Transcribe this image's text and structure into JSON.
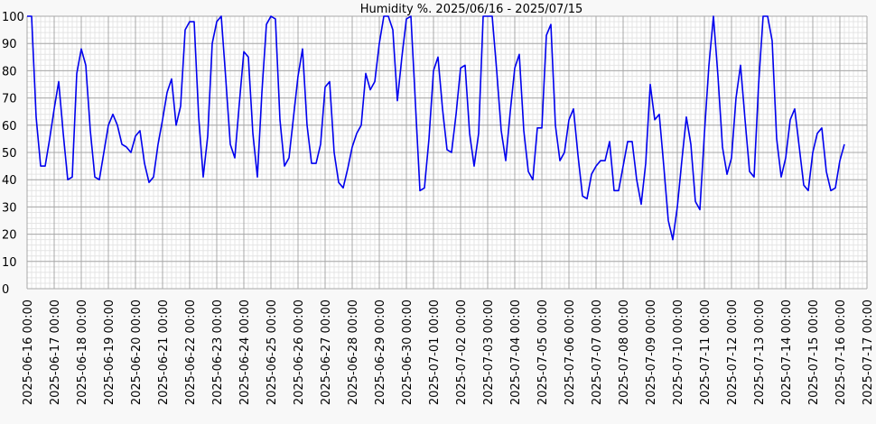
{
  "chart_data": {
    "type": "line",
    "title": "Humidity %. 2025/06/16 - 2025/07/15",
    "x": [
      "2025-06-16 00:00",
      "2025-06-16 04:00",
      "2025-06-16 08:00",
      "2025-06-16 12:00",
      "2025-06-16 16:00",
      "2025-06-16 20:00",
      "2025-06-17 00:00",
      "2025-06-17 04:00",
      "2025-06-17 08:00",
      "2025-06-17 12:00",
      "2025-06-17 16:00",
      "2025-06-17 20:00",
      "2025-06-18 00:00",
      "2025-06-18 04:00",
      "2025-06-18 08:00",
      "2025-06-18 12:00",
      "2025-06-18 16:00",
      "2025-06-18 20:00",
      "2025-06-19 00:00",
      "2025-06-19 04:00",
      "2025-06-19 08:00",
      "2025-06-19 12:00",
      "2025-06-19 16:00",
      "2025-06-19 20:00",
      "2025-06-20 00:00",
      "2025-06-20 04:00",
      "2025-06-20 08:00",
      "2025-06-20 12:00",
      "2025-06-20 16:00",
      "2025-06-20 20:00",
      "2025-06-21 00:00",
      "2025-06-21 04:00",
      "2025-06-21 08:00",
      "2025-06-21 12:00",
      "2025-06-21 16:00",
      "2025-06-21 20:00",
      "2025-06-22 00:00",
      "2025-06-22 04:00",
      "2025-06-22 08:00",
      "2025-06-22 12:00",
      "2025-06-22 16:00",
      "2025-06-22 20:00",
      "2025-06-23 00:00",
      "2025-06-23 04:00",
      "2025-06-23 08:00",
      "2025-06-23 12:00",
      "2025-06-23 16:00",
      "2025-06-23 20:00",
      "2025-06-24 00:00",
      "2025-06-24 04:00",
      "2025-06-24 08:00",
      "2025-06-24 12:00",
      "2025-06-24 16:00",
      "2025-06-24 20:00",
      "2025-06-25 00:00",
      "2025-06-25 04:00",
      "2025-06-25 08:00",
      "2025-06-25 12:00",
      "2025-06-25 16:00",
      "2025-06-25 20:00",
      "2025-06-26 00:00",
      "2025-06-26 04:00",
      "2025-06-26 08:00",
      "2025-06-26 12:00",
      "2025-06-26 16:00",
      "2025-06-26 20:00",
      "2025-06-27 00:00",
      "2025-06-27 04:00",
      "2025-06-27 08:00",
      "2025-06-27 12:00",
      "2025-06-27 16:00",
      "2025-06-27 20:00",
      "2025-06-28 00:00",
      "2025-06-28 04:00",
      "2025-06-28 08:00",
      "2025-06-28 12:00",
      "2025-06-28 16:00",
      "2025-06-28 20:00",
      "2025-06-29 00:00",
      "2025-06-29 04:00",
      "2025-06-29 08:00",
      "2025-06-29 12:00",
      "2025-06-29 16:00",
      "2025-06-29 20:00",
      "2025-06-30 00:00",
      "2025-06-30 04:00",
      "2025-06-30 08:00",
      "2025-06-30 12:00",
      "2025-06-30 16:00",
      "2025-06-30 20:00",
      "2025-07-01 00:00",
      "2025-07-01 04:00",
      "2025-07-01 08:00",
      "2025-07-01 12:00",
      "2025-07-01 16:00",
      "2025-07-01 20:00",
      "2025-07-02 00:00",
      "2025-07-02 04:00",
      "2025-07-02 08:00",
      "2025-07-02 12:00",
      "2025-07-02 16:00",
      "2025-07-02 20:00",
      "2025-07-03 00:00",
      "2025-07-03 04:00",
      "2025-07-03 08:00",
      "2025-07-03 12:00",
      "2025-07-03 16:00",
      "2025-07-03 20:00",
      "2025-07-04 00:00",
      "2025-07-04 04:00",
      "2025-07-04 08:00",
      "2025-07-04 12:00",
      "2025-07-04 16:00",
      "2025-07-04 20:00",
      "2025-07-05 00:00",
      "2025-07-05 04:00",
      "2025-07-05 08:00",
      "2025-07-05 12:00",
      "2025-07-05 16:00",
      "2025-07-05 20:00",
      "2025-07-06 00:00",
      "2025-07-06 04:00",
      "2025-07-06 08:00",
      "2025-07-06 12:00",
      "2025-07-06 16:00",
      "2025-07-06 20:00",
      "2025-07-07 00:00",
      "2025-07-07 04:00",
      "2025-07-07 08:00",
      "2025-07-07 12:00",
      "2025-07-07 16:00",
      "2025-07-07 20:00",
      "2025-07-08 00:00",
      "2025-07-08 04:00",
      "2025-07-08 08:00",
      "2025-07-08 12:00",
      "2025-07-08 16:00",
      "2025-07-08 20:00",
      "2025-07-09 00:00",
      "2025-07-09 04:00",
      "2025-07-09 08:00",
      "2025-07-09 12:00",
      "2025-07-09 16:00",
      "2025-07-09 20:00",
      "2025-07-10 00:00",
      "2025-07-10 04:00",
      "2025-07-10 08:00",
      "2025-07-10 12:00",
      "2025-07-10 16:00",
      "2025-07-10 20:00",
      "2025-07-11 00:00",
      "2025-07-11 04:00",
      "2025-07-11 08:00",
      "2025-07-11 12:00",
      "2025-07-11 16:00",
      "2025-07-11 20:00",
      "2025-07-12 00:00",
      "2025-07-12 04:00",
      "2025-07-12 08:00",
      "2025-07-12 12:00",
      "2025-07-12 16:00",
      "2025-07-12 20:00",
      "2025-07-13 00:00",
      "2025-07-13 04:00",
      "2025-07-13 08:00",
      "2025-07-13 12:00",
      "2025-07-13 16:00",
      "2025-07-13 20:00",
      "2025-07-14 00:00",
      "2025-07-14 04:00",
      "2025-07-14 08:00",
      "2025-07-14 12:00",
      "2025-07-14 16:00",
      "2025-07-14 20:00",
      "2025-07-15 00:00",
      "2025-07-15 04:00",
      "2025-07-15 08:00",
      "2025-07-15 12:00",
      "2025-07-15 16:00",
      "2025-07-15 20:00",
      "2025-07-16 00:00",
      "2025-07-16 04:00"
    ],
    "series": [
      {
        "name": "Humidity",
        "color": "#0000ee",
        "values": [
          100,
          100,
          63,
          45,
          45,
          55,
          66,
          76,
          57,
          40,
          41,
          79,
          88,
          82,
          58,
          41,
          40,
          50,
          60,
          64,
          60,
          53,
          52,
          50,
          56,
          58,
          46,
          39,
          41,
          53,
          62,
          72,
          77,
          60,
          67,
          95,
          98,
          98,
          63,
          41,
          56,
          90,
          98,
          100,
          77,
          53,
          48,
          68,
          87,
          85,
          57,
          41,
          72,
          97,
          100,
          99,
          62,
          45,
          48,
          63,
          78,
          88,
          60,
          46,
          46,
          53,
          74,
          76,
          50,
          39,
          37,
          44,
          52,
          57,
          60,
          79,
          73,
          76,
          90,
          100,
          100,
          95,
          69,
          85,
          99,
          100,
          68,
          36,
          37,
          55,
          80,
          85,
          66,
          51,
          50,
          64,
          81,
          82,
          57,
          45,
          57,
          100,
          100,
          100,
          80,
          58,
          47,
          65,
          81,
          86,
          58,
          43,
          40,
          59,
          59,
          93,
          97,
          60,
          47,
          50,
          62,
          66,
          49,
          34,
          33,
          42,
          45,
          47,
          47,
          54,
          36,
          36,
          45,
          54,
          54,
          40,
          31,
          46,
          75,
          62,
          64,
          45,
          25,
          18,
          30,
          47,
          63,
          53,
          32,
          29,
          57,
          82,
          100,
          78,
          52,
          42,
          48,
          70,
          82,
          62,
          43,
          41,
          75,
          100,
          100,
          91,
          55,
          41,
          48,
          62,
          66,
          52,
          38,
          36,
          50,
          57,
          59,
          43,
          36,
          37,
          47,
          53
        ]
      }
    ],
    "xlim": [
      "2025-06-16 00:00",
      "2025-07-17 00:00"
    ],
    "xticks": [
      "2025-06-16 00:00",
      "2025-06-17 00:00",
      "2025-06-18 00:00",
      "2025-06-19 00:00",
      "2025-06-20 00:00",
      "2025-06-21 00:00",
      "2025-06-22 00:00",
      "2025-06-23 00:00",
      "2025-06-24 00:00",
      "2025-06-25 00:00",
      "2025-06-26 00:00",
      "2025-06-27 00:00",
      "2025-06-28 00:00",
      "2025-06-29 00:00",
      "2025-06-30 00:00",
      "2025-07-01 00:00",
      "2025-07-02 00:00",
      "2025-07-03 00:00",
      "2025-07-04 00:00",
      "2025-07-05 00:00",
      "2025-07-06 00:00",
      "2025-07-07 00:00",
      "2025-07-08 00:00",
      "2025-07-09 00:00",
      "2025-07-10 00:00",
      "2025-07-11 00:00",
      "2025-07-12 00:00",
      "2025-07-13 00:00",
      "2025-07-14 00:00",
      "2025-07-15 00:00",
      "2025-07-16 00:00",
      "2025-07-17 00:00"
    ],
    "ylim": [
      0,
      100
    ],
    "yticks": [
      0,
      10,
      20,
      30,
      40,
      50,
      60,
      70,
      80,
      90,
      100
    ],
    "grid": true
  }
}
